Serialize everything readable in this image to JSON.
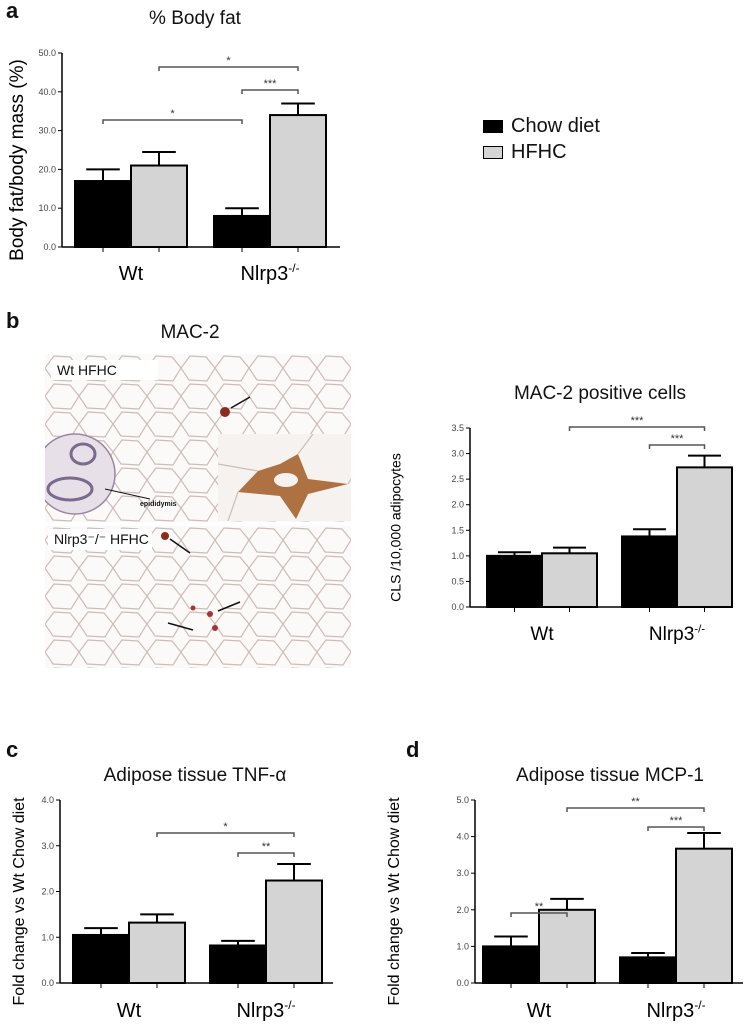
{
  "figure": {
    "panels": {
      "a": {
        "letter": "a",
        "title": "% Body fat",
        "ylabel": "Body fat/body mass (%)"
      },
      "b": {
        "letter": "b",
        "image_title": "MAC-2",
        "chart_title": "MAC-2 positive cells",
        "ylabel": "CLS /10,000 adipocytes",
        "image_labels": {
          "top": "Wt HFHC",
          "bottom": "Nlrp3⁻/⁻ HFHC",
          "annotation": "epididymis"
        }
      },
      "c": {
        "letter": "c",
        "title": "Adipose tissue TNF-α",
        "ylabel": "Fold change vs Wt Chow diet"
      },
      "d": {
        "letter": "d",
        "title": "Adipose tissue MCP-1",
        "ylabel": "Fold change vs Wt Chow diet"
      }
    },
    "legend": [
      {
        "label": "Chow diet",
        "color": "#000000"
      },
      {
        "label": "HFHC",
        "color": "#d4d4d4"
      }
    ],
    "groups": [
      "Wt",
      "Nlrp3-/-"
    ]
  },
  "chart_data": [
    {
      "id": "a",
      "type": "bar",
      "title": "% Body fat",
      "xlabel": "",
      "ylabel": "Body fat/body mass (%)",
      "categories": [
        "Wt",
        "Nlrp3-/-"
      ],
      "ylim": [
        0,
        50
      ],
      "yticks": [
        "0.0",
        "10.0",
        "20.0",
        "30.0",
        "40.0",
        "50.0"
      ],
      "series": [
        {
          "name": "Chow diet",
          "values": [
            17.0,
            8.0
          ],
          "error_upper": [
            20.0,
            10.0
          ]
        },
        {
          "name": "HFHC",
          "values": [
            21.0,
            34.0
          ],
          "error_upper": [
            24.5,
            37.0
          ]
        }
      ],
      "significance": [
        {
          "from": "Wt Chow diet",
          "to": "Nlrp3-/- Chow diet",
          "label": "*"
        },
        {
          "from": "Wt HFHC",
          "to": "Nlrp3-/- HFHC",
          "label": "*"
        },
        {
          "from": "Nlrp3-/- Chow diet",
          "to": "Nlrp3-/- HFHC",
          "label": "***"
        }
      ],
      "legend_position": "right"
    },
    {
      "id": "b",
      "type": "bar",
      "title": "MAC-2 positive cells",
      "xlabel": "",
      "ylabel": "CLS /10,000 adipocytes",
      "categories": [
        "Wt",
        "Nlrp3-/-"
      ],
      "ylim": [
        0,
        3.5
      ],
      "yticks": [
        "0.0",
        "0.5",
        "1.0",
        "1.5",
        "2.0",
        "2.5",
        "3.0",
        "3.5"
      ],
      "series": [
        {
          "name": "Chow diet",
          "values": [
            1.0,
            1.38
          ],
          "error_upper": [
            1.07,
            1.52
          ]
        },
        {
          "name": "HFHC",
          "values": [
            1.05,
            2.73
          ],
          "error_upper": [
            1.16,
            2.96
          ]
        }
      ],
      "significance": [
        {
          "from": "Wt HFHC",
          "to": "Nlrp3-/- HFHC",
          "label": "***"
        },
        {
          "from": "Nlrp3-/- Chow diet",
          "to": "Nlrp3-/- HFHC",
          "label": "***"
        }
      ]
    },
    {
      "id": "c",
      "type": "bar",
      "title": "Adipose tissue TNF-α",
      "xlabel": "",
      "ylabel": "Fold change vs Wt Chow diet",
      "categories": [
        "Wt",
        "Nlrp3-/-"
      ],
      "ylim": [
        0,
        4
      ],
      "yticks": [
        "0.0",
        "1.0",
        "2.0",
        "3.0",
        "4.0"
      ],
      "series": [
        {
          "name": "Chow diet",
          "values": [
            1.05,
            0.82
          ],
          "error_upper": [
            1.2,
            0.92
          ]
        },
        {
          "name": "HFHC",
          "values": [
            1.32,
            2.24
          ],
          "error_upper": [
            1.5,
            2.6
          ]
        }
      ],
      "significance": [
        {
          "from": "Wt HFHC",
          "to": "Nlrp3-/- HFHC",
          "label": "*"
        },
        {
          "from": "Nlrp3-/- Chow diet",
          "to": "Nlrp3-/- HFHC",
          "label": "**"
        }
      ]
    },
    {
      "id": "d",
      "type": "bar",
      "title": "Adipose tissue MCP-1",
      "xlabel": "",
      "ylabel": "Fold change vs Wt Chow diet",
      "categories": [
        "Wt",
        "Nlrp3-/-"
      ],
      "ylim": [
        0,
        5
      ],
      "yticks": [
        "0.0",
        "1.0",
        "2.0",
        "3.0",
        "4.0",
        "5.0"
      ],
      "series": [
        {
          "name": "Chow diet",
          "values": [
            1.0,
            0.7
          ],
          "error_upper": [
            1.27,
            0.82
          ]
        },
        {
          "name": "HFHC",
          "values": [
            2.0,
            3.67
          ],
          "error_upper": [
            2.3,
            4.1
          ]
        }
      ],
      "significance": [
        {
          "from": "Wt Chow diet",
          "to": "Wt HFHC",
          "label": "**"
        },
        {
          "from": "Wt HFHC",
          "to": "Nlrp3-/- HFHC",
          "label": "**"
        },
        {
          "from": "Nlrp3-/- Chow diet",
          "to": "Nlrp3-/- HFHC",
          "label": "***"
        }
      ]
    }
  ]
}
